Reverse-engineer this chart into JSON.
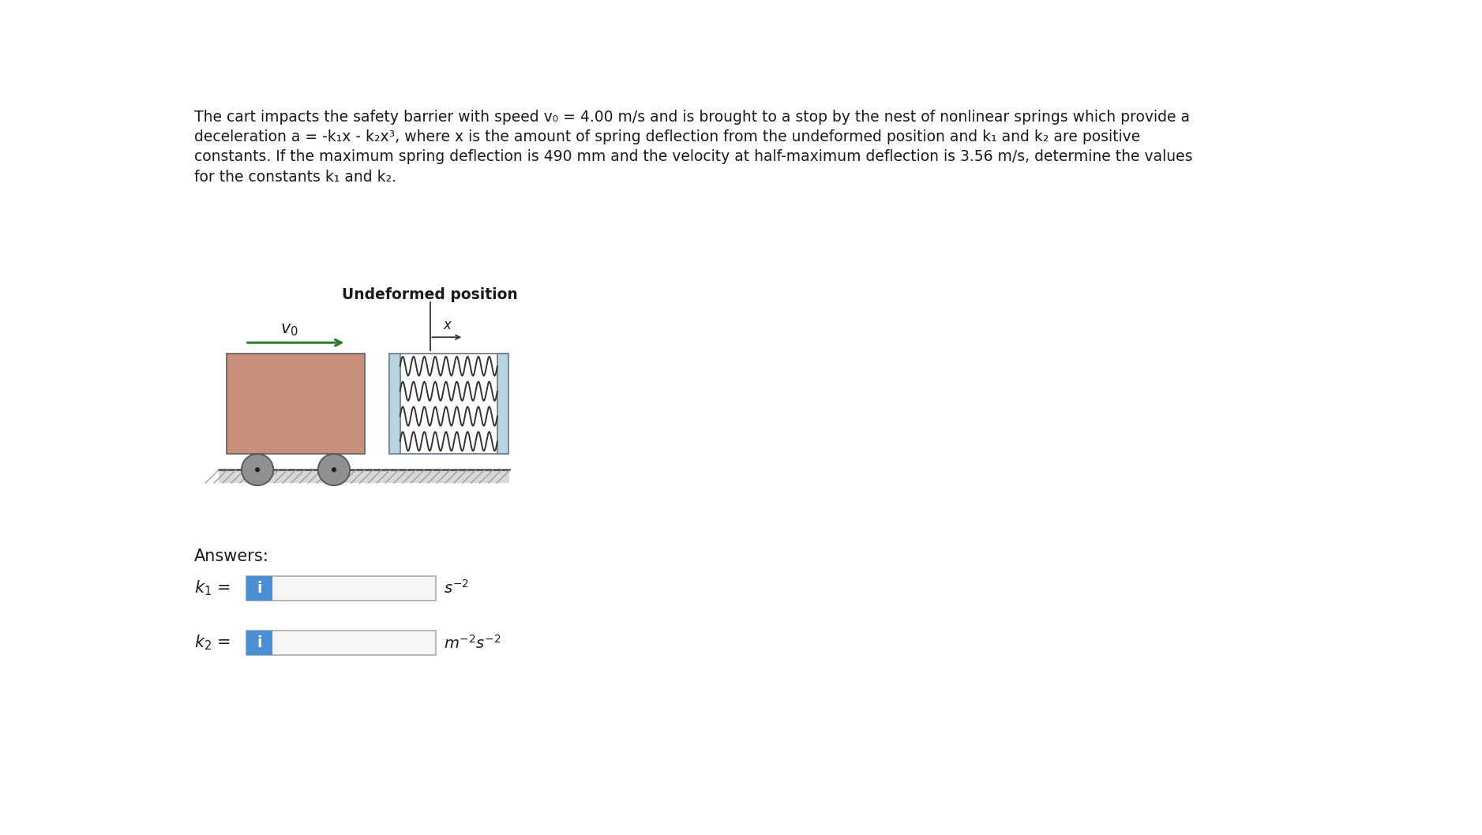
{
  "bg_color": "#ffffff",
  "text_color": "#1a1a1a",
  "line1": "The cart impacts the safety barrier with speed v₀ = 4.00 m/s and is brought to a stop by the nest of nonlinear springs which provide a",
  "line2": "deceleration a = -k₁x - k₂x³, where x is the amount of spring deflection from the undeformed position and k₁ and k₂ are positive",
  "line3": "constants. If the maximum spring deflection is 490 mm and the velocity at half-maximum deflection is 3.56 m/s, determine the values",
  "line4": "for the constants k₁ and k₂.",
  "cart_color": "#c8907a",
  "cart_edge": "#666666",
  "wheel_color": "#909090",
  "wheel_edge": "#555555",
  "arrow_color": "#2d7a2d",
  "spring_color": "#333333",
  "barrier_left_color": "#b8d4e0",
  "barrier_right_color": "#b8d4e0",
  "barrier_edge": "#708090",
  "ground_line_color": "#555555",
  "ground_fill_color": "#d8d8d8",
  "hatch_color": "#999999",
  "undeformed_label": "Undeformed position",
  "answers_label": "Answers:",
  "info_color": "#4a8fd4",
  "info_text": "i",
  "box_fill": "#f5f5f5",
  "box_edge": "#aaaaaa"
}
